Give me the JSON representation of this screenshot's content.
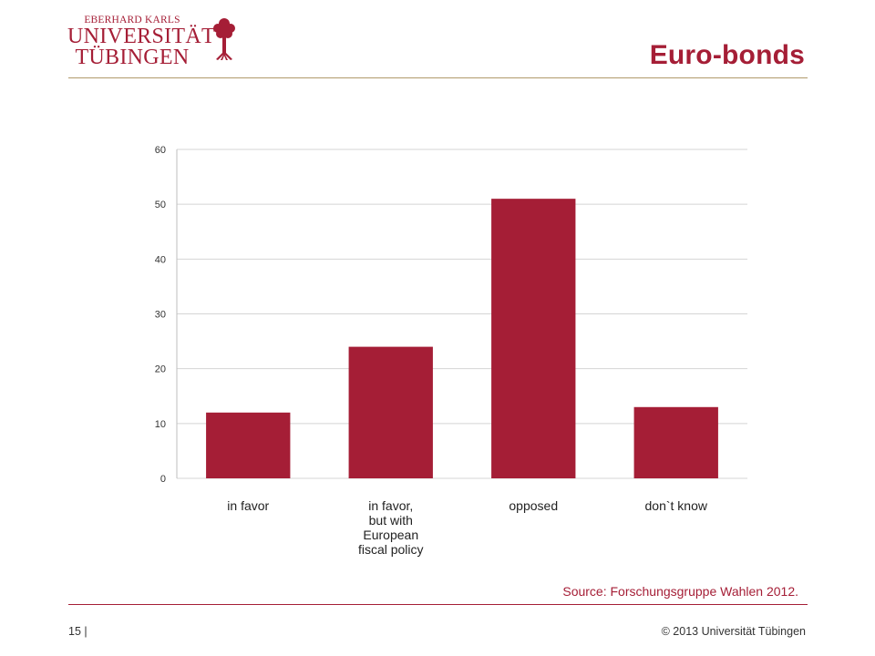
{
  "header": {
    "logo_line1": "EBERHARD KARLS",
    "logo_line2": "UNIVERSITÄT",
    "logo_line3": "TÜBINGEN",
    "title": "Euro-bonds"
  },
  "colors": {
    "brand": "#a51e36",
    "bar": "#a51e36",
    "grid": "#d4d4d4",
    "axis": "#bfbfbf"
  },
  "chart_data": {
    "type": "bar",
    "categories": [
      [
        "in favor"
      ],
      [
        "in favor,",
        "but with",
        "European",
        "fiscal policy"
      ],
      [
        "opposed"
      ],
      [
        "don`t know"
      ]
    ],
    "values": [
      12,
      24,
      51,
      13
    ],
    "ylim": [
      0,
      60
    ],
    "yticks": [
      0,
      10,
      20,
      30,
      40,
      50,
      60
    ],
    "grid": true,
    "legend": "none",
    "title": "",
    "xlabel": "",
    "ylabel": ""
  },
  "footer": {
    "source": "Source: Forschungsgruppe Wahlen 2012.",
    "page": "15 |",
    "copyright": "© 2013 Universität Tübingen"
  }
}
